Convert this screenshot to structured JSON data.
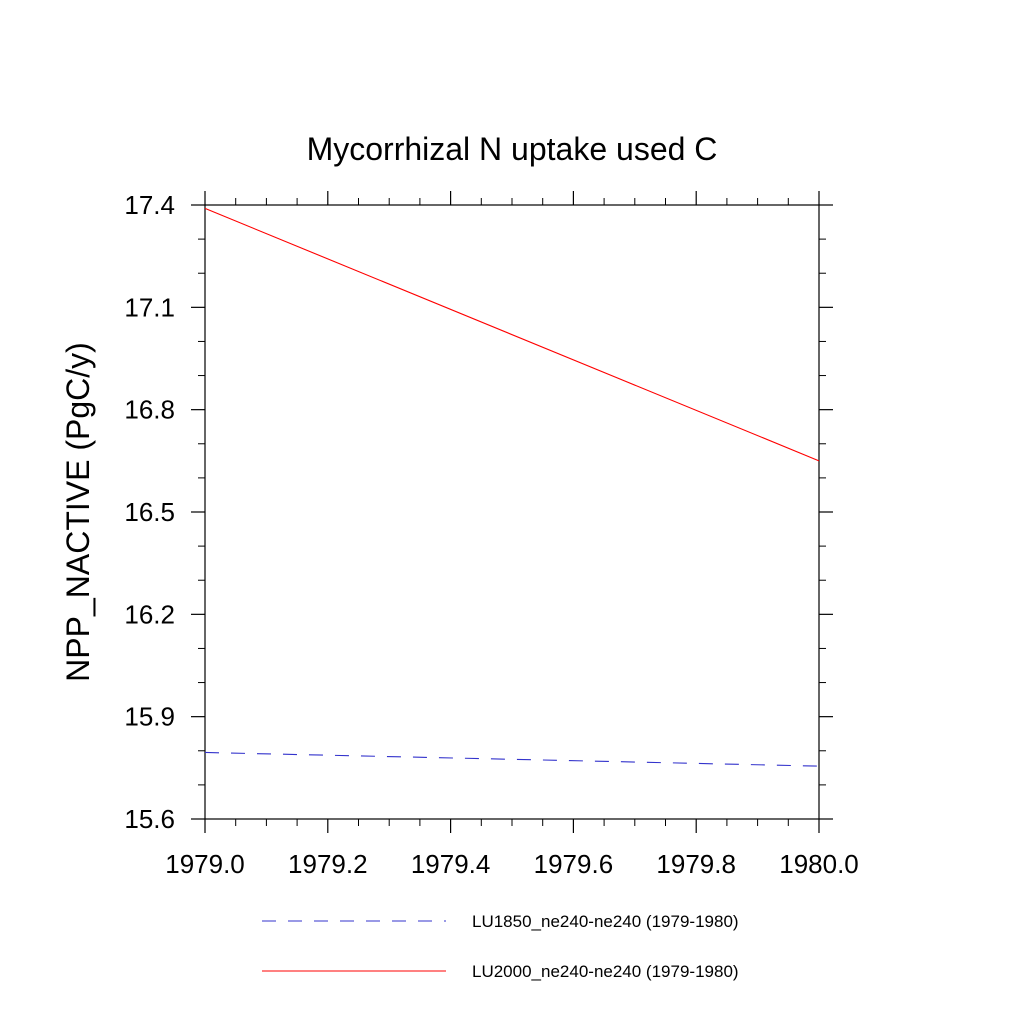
{
  "chart_data": {
    "type": "line",
    "title": "Mycorrhizal N uptake used C",
    "xlabel": "",
    "ylabel": "NPP_NACTIVE  (PgC/y)",
    "xlim": [
      1979.0,
      1980.0
    ],
    "ylim": [
      15.6,
      17.4
    ],
    "x_ticks": [
      "1979.0",
      "1979.2",
      "1979.4",
      "1979.6",
      "1979.8",
      "1980.0"
    ],
    "y_ticks": [
      "15.6",
      "15.9",
      "16.2",
      "16.5",
      "16.8",
      "17.1",
      "17.4"
    ],
    "grid": false,
    "legend_position": "bottom",
    "series": [
      {
        "name": "LU1850_ne240-ne240 (1979-1980)",
        "color": "#3333cc",
        "style": "dashed",
        "x": [
          1979.0,
          1980.0
        ],
        "y": [
          15.795,
          15.755
        ]
      },
      {
        "name": "LU2000_ne240-ne240 (1979-1980)",
        "color": "#ff0000",
        "style": "solid",
        "x": [
          1979.0,
          1980.0
        ],
        "y": [
          17.39,
          16.65
        ]
      }
    ]
  }
}
